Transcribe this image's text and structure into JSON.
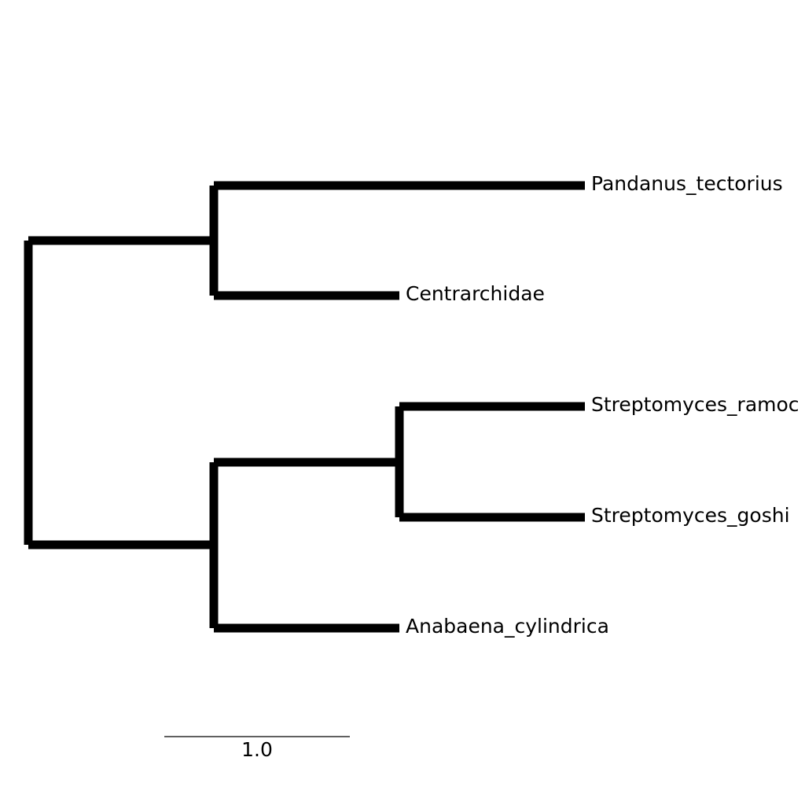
{
  "tree": {
    "leaves": [
      {
        "id": "pandanus",
        "label": "Pandanus_tectorius"
      },
      {
        "id": "centrarchidae",
        "label": "Centrarchidae"
      },
      {
        "id": "ramoc",
        "label": "Streptomyces_ramoc"
      },
      {
        "id": "goshi",
        "label": "Streptomyces_goshi"
      },
      {
        "id": "anabaena",
        "label": "Anabaena_cylindrica"
      }
    ],
    "newick": "((Pandanus_tectorius:2.0,Centrarchidae:1.0):1.0,((Streptomyces_ramoc:1.0,Streptomyces_goshi:1.0):1.0,Anabaena_cylindrica:1.0):1.0);",
    "branch_color": "#000000"
  },
  "scale_bar": {
    "label": "1.0",
    "length": 1.0
  }
}
